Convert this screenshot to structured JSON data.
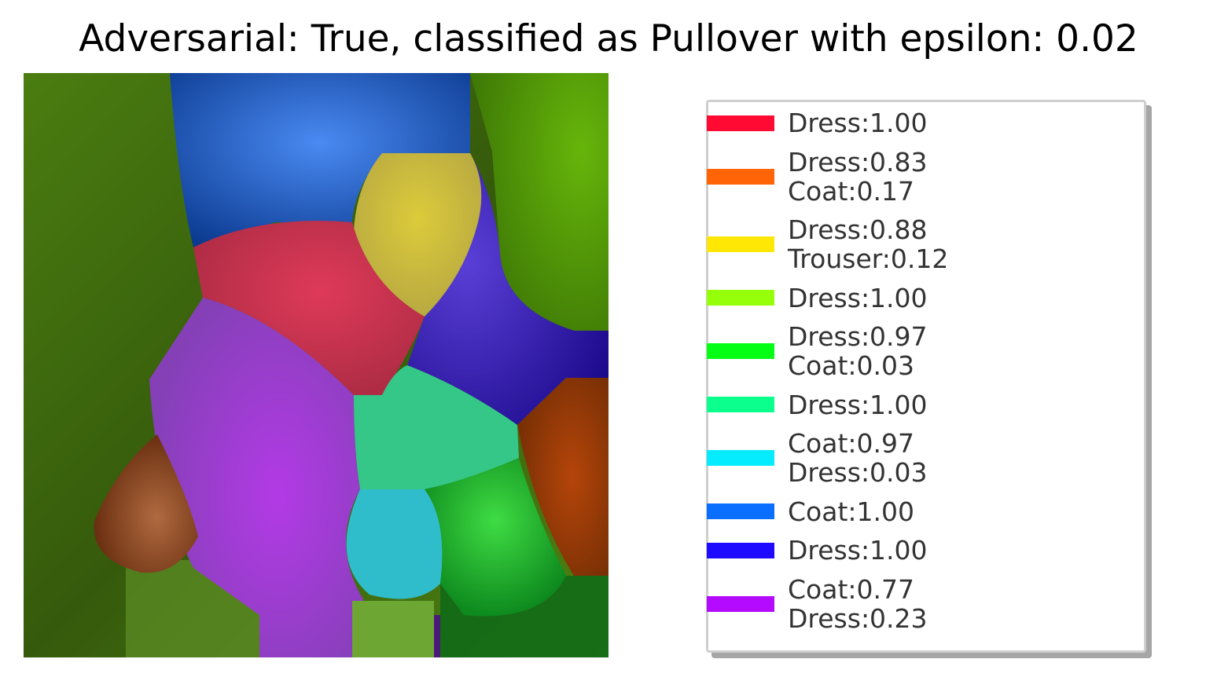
{
  "title": "Adversarial: True, classified as Pullover with epsilon: 0.02",
  "legend": {
    "entries": [
      {
        "color": "#ff0a33",
        "lines": [
          "Dress:1.00"
        ]
      },
      {
        "color": "#ff6407",
        "lines": [
          "Dress:0.83",
          "Coat:0.17"
        ]
      },
      {
        "color": "#ffe705",
        "lines": [
          "Dress:0.88",
          "Trouser:0.12"
        ]
      },
      {
        "color": "#96ff0a",
        "lines": [
          "Dress:1.00"
        ]
      },
      {
        "color": "#05ff14",
        "lines": [
          "Dress:0.97",
          "Coat:0.03"
        ]
      },
      {
        "color": "#0aff8c",
        "lines": [
          "Dress:1.00"
        ]
      },
      {
        "color": "#05ebff",
        "lines": [
          "Coat:0.97",
          "Dress:0.03"
        ]
      },
      {
        "color": "#0a6eff",
        "lines": [
          "Coat:1.00"
        ]
      },
      {
        "color": "#1e0aff",
        "lines": [
          "Dress:1.00"
        ]
      },
      {
        "color": "#b40aff",
        "lines": [
          "Coat:0.77",
          "Dress:0.23"
        ]
      }
    ]
  }
}
